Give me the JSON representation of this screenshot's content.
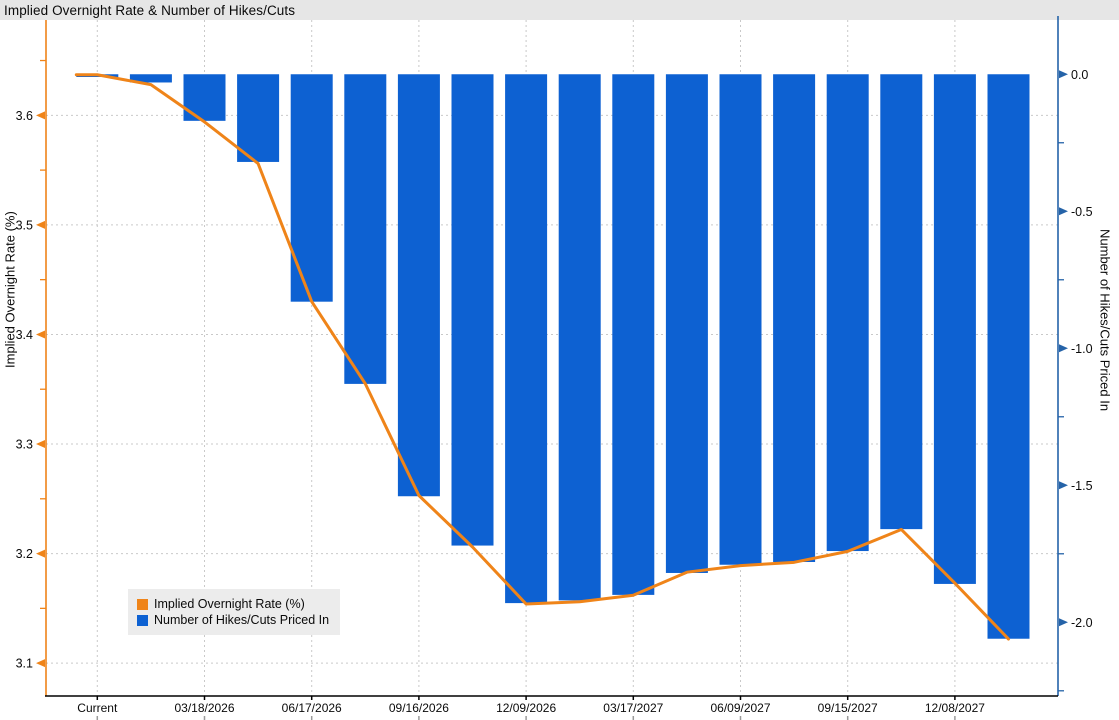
{
  "title": "Implied Overnight Rate & Number of Hikes/Cuts",
  "colors": {
    "bar_blue": "#0d61d2",
    "line_orange": "#ef8419",
    "left_axis": "#ef8419",
    "right_axis": "#2563a8",
    "grid": "#c9c9c9",
    "bottom_axis": "#000000",
    "title_bar_bg": "#e6e6e6",
    "legend_bg": "#ececec"
  },
  "legend": {
    "items": [
      {
        "label": "Implied Overnight Rate (%)",
        "color": "#ef8419"
      },
      {
        "label": "Number of Hikes/Cuts Priced In",
        "color": "#0d61d2"
      }
    ]
  },
  "left_axis": {
    "title": "Implied Overnight Rate (%)",
    "tick_labels": [
      "3.6",
      "3.5",
      "3.4",
      "3.3",
      "3.2",
      "3.1"
    ]
  },
  "right_axis": {
    "title": "Number of Hikes/Cuts Priced In",
    "tick_labels": [
      "0.0",
      "-0.5",
      "-1.0",
      "-1.5",
      "-2.0"
    ]
  },
  "x_axis": {
    "tick_labels": [
      "Current",
      "03/18/2026",
      "06/17/2026",
      "09/16/2026",
      "12/09/2026",
      "03/17/2027",
      "06/09/2027",
      "09/15/2027",
      "12/08/2027"
    ]
  },
  "chart_data": {
    "type": "bar",
    "title": "Implied Overnight Rate & Number of Hikes/Cuts",
    "categories": [
      "Current",
      "",
      "03/18/2026",
      "",
      "06/17/2026",
      "",
      "09/16/2026",
      "",
      "12/09/2026",
      "",
      "03/17/2027",
      "",
      "06/09/2027",
      "",
      "09/15/2027",
      "",
      "12/08/2027",
      ""
    ],
    "series": [
      {
        "name": "Implied Overnight Rate (%)",
        "type": "line",
        "axis": "left",
        "color": "#ef8419",
        "values": [
          3.637,
          3.628,
          3.594,
          3.556,
          3.43,
          3.355,
          3.253,
          3.206,
          3.154,
          3.156,
          3.162,
          3.183,
          3.189,
          3.192,
          3.202,
          3.222,
          3.173,
          3.122
        ]
      },
      {
        "name": "Number of Hikes/Cuts Priced In",
        "type": "bar",
        "axis": "right",
        "color": "#0d61d2",
        "values": [
          -0.01,
          -0.03,
          -0.17,
          -0.32,
          -0.83,
          -1.13,
          -1.54,
          -1.72,
          -1.93,
          -1.92,
          -1.9,
          -1.82,
          -1.79,
          -1.78,
          -1.74,
          -1.66,
          -1.86,
          -2.06
        ]
      }
    ],
    "left_ylabel": "Implied Overnight Rate (%)",
    "right_ylabel": "Number of Hikes/Cuts Priced In",
    "left_yticks": [
      3.6,
      3.5,
      3.4,
      3.3,
      3.2,
      3.1
    ],
    "right_yticks": [
      0.0,
      -0.5,
      -1.0,
      -1.5,
      -2.0
    ],
    "left_ylim": [
      3.07,
      3.687
    ],
    "right_ylim": [
      -2.269,
      0.198
    ],
    "grid": true,
    "legend_position": "inside-bottom-left"
  }
}
